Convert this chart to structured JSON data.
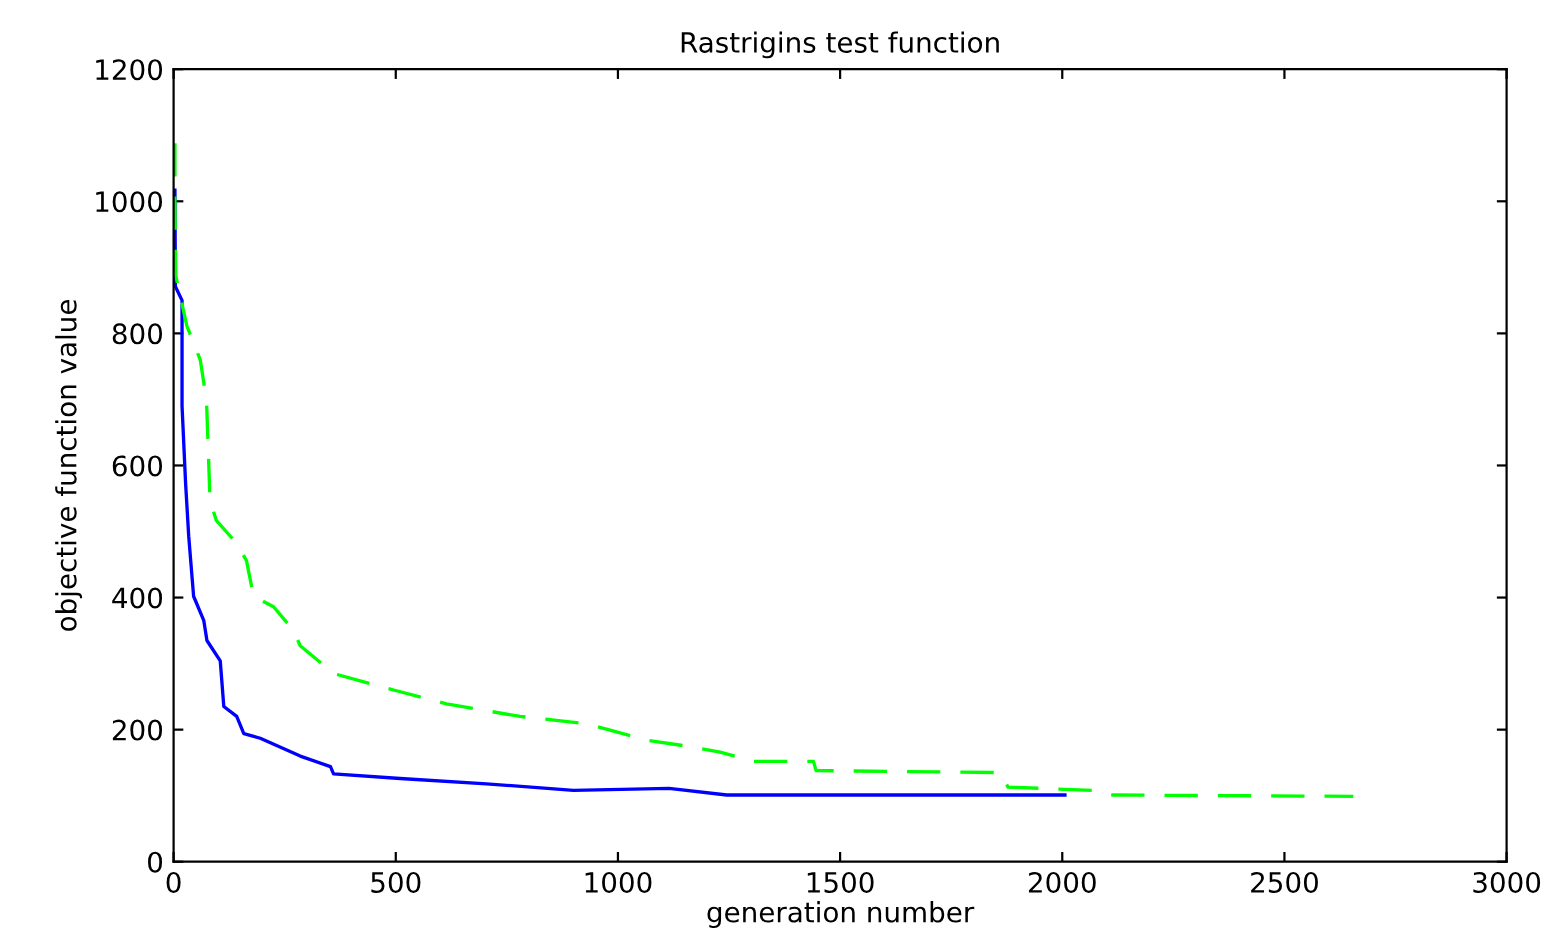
{
  "chart_data": {
    "type": "line",
    "title": "Rastrigins test function",
    "xlabel": "generation number",
    "ylabel": "objective function value",
    "xlim": [
      0,
      3000
    ],
    "xticks": [
      0,
      500,
      1000,
      1500,
      2000,
      2500,
      3000
    ],
    "ylim": [
      0,
      1200
    ],
    "yticks": [
      0,
      200,
      400,
      600,
      800,
      1000,
      1200
    ],
    "grid": false,
    "series": [
      {
        "color": "#0000ff",
        "line_style": "solid",
        "x": [
          3,
          4,
          19,
          19,
          27,
          34,
          45,
          68,
          75,
          105,
          113,
          142,
          158,
          195,
          285,
          353,
          360,
          510,
          704,
          900,
          1115,
          1245,
          2006
        ],
        "values": [
          1017,
          871,
          850,
          690,
          573,
          493,
          402,
          365,
          335,
          304,
          235,
          220,
          194,
          187,
          160,
          144,
          133,
          126,
          118,
          108,
          111,
          101,
          101
        ]
      },
      {
        "color": "#00ff00",
        "line_style": "dashed",
        "x": [
          3,
          3,
          5,
          30,
          60,
          74,
          82,
          96,
          142,
          164,
          180,
          225,
          270,
          285,
          360,
          495,
          614,
          780,
          930,
          1065,
          1155,
          1230,
          1305,
          1440,
          1446,
          1860,
          1878,
          2070,
          2115,
          2655
        ],
        "values": [
          1088,
          1002,
          887,
          811,
          760,
          699,
          547,
          517,
          482,
          456,
          402,
          386,
          350,
          327,
          285,
          260,
          239,
          220,
          209,
          184,
          175,
          166,
          152,
          152,
          138,
          135,
          113,
          108,
          101,
          99
        ]
      }
    ]
  }
}
